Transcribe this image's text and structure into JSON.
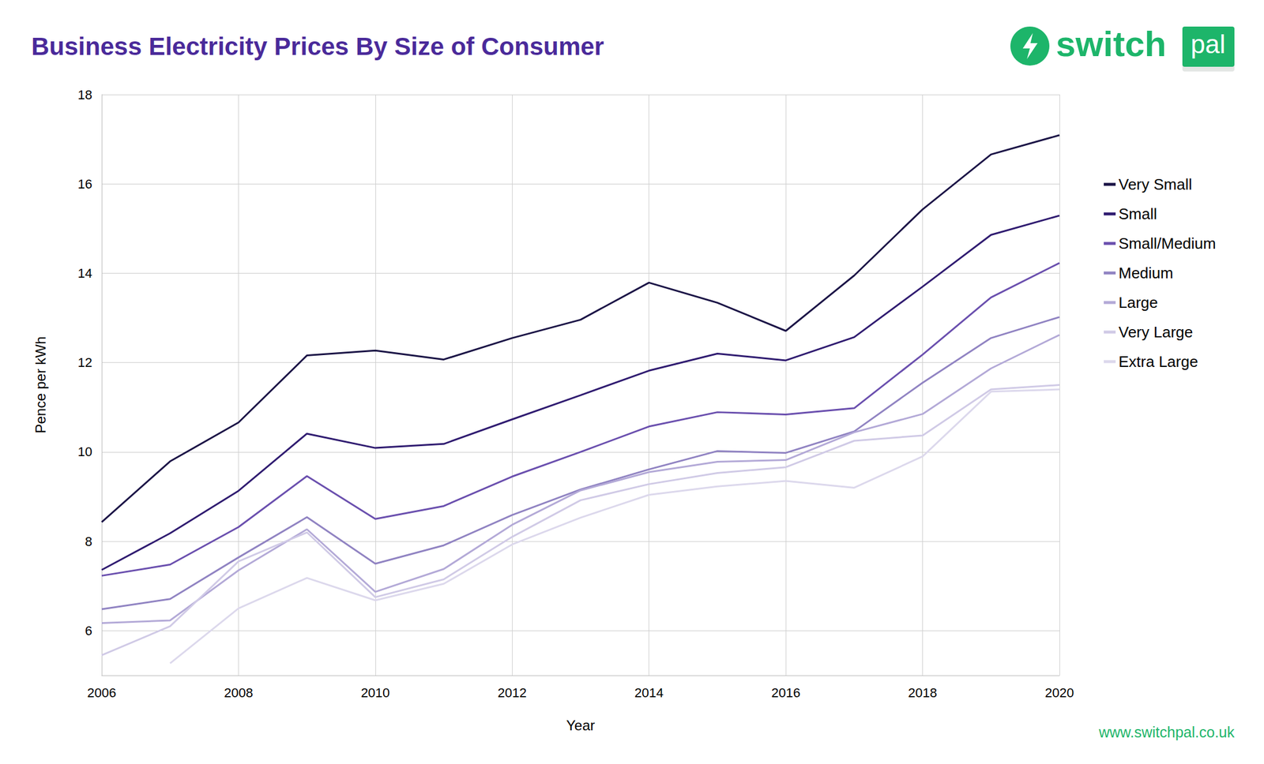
{
  "chart_data": {
    "type": "line",
    "title": "Business Electricity Prices By Size of Consumer",
    "x_label": "Year",
    "y_label": "Pence per kWh",
    "x": [
      2006,
      2007,
      2008,
      2009,
      2010,
      2011,
      2012,
      2013,
      2014,
      2015,
      2016,
      2017,
      2018,
      2019,
      2020
    ],
    "series": [
      {
        "name": "Very Small",
        "color": "#1b1446",
        "values": [
          8.43,
          9.79,
          10.66,
          12.16,
          12.27,
          12.07,
          12.55,
          12.96,
          13.79,
          13.34,
          12.71,
          13.95,
          15.43,
          16.66,
          17.09
        ]
      },
      {
        "name": "Small",
        "color": "#2f1b70",
        "values": [
          7.36,
          8.18,
          9.13,
          10.41,
          10.09,
          10.18,
          10.73,
          11.27,
          11.82,
          12.2,
          12.05,
          12.57,
          13.7,
          14.86,
          15.29
        ]
      },
      {
        "name": "Small/Medium",
        "color": "#6a4fae",
        "values": [
          7.23,
          7.48,
          8.32,
          9.46,
          8.5,
          8.79,
          9.45,
          10.0,
          10.57,
          10.89,
          10.84,
          10.98,
          12.18,
          13.46,
          14.23
        ]
      },
      {
        "name": "Medium",
        "color": "#9083c2",
        "values": [
          6.48,
          6.71,
          7.64,
          8.54,
          7.5,
          7.91,
          8.59,
          9.16,
          9.61,
          10.02,
          9.98,
          10.46,
          11.55,
          12.55,
          13.02
        ]
      },
      {
        "name": "Large",
        "color": "#b3a9d7",
        "values": [
          6.17,
          6.23,
          7.35,
          8.27,
          6.87,
          7.38,
          8.37,
          9.14,
          9.55,
          9.78,
          9.82,
          10.44,
          10.85,
          11.87,
          12.62
        ]
      },
      {
        "name": "Very Large",
        "color": "#d0cae6",
        "values": [
          5.45,
          6.1,
          7.55,
          8.2,
          6.75,
          7.15,
          8.1,
          8.92,
          9.28,
          9.53,
          9.66,
          10.25,
          10.37,
          11.4,
          11.5
        ]
      },
      {
        "name": "Extra Large",
        "color": "#dcd8ec",
        "values": [
          null,
          5.27,
          6.5,
          7.18,
          6.68,
          7.05,
          7.93,
          8.53,
          9.04,
          9.23,
          9.35,
          9.2,
          9.9,
          11.35,
          11.4
        ]
      }
    ],
    "xlim": [
      2006,
      2020
    ],
    "xticks": [
      2006,
      2008,
      2010,
      2012,
      2014,
      2016,
      2018,
      2020
    ],
    "ylim": [
      5,
      18
    ],
    "yticks": [
      6,
      8,
      10,
      12,
      14,
      16,
      18
    ],
    "grid": true,
    "legend": "right",
    "annotations": [
      "switch",
      "pal",
      "www.switchpal.co.uk"
    ]
  }
}
